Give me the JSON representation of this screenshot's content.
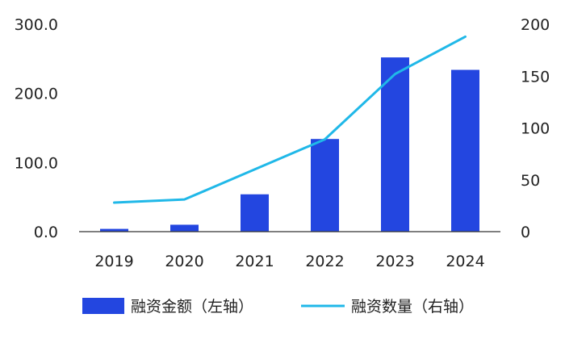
{
  "chart_data": {
    "type": "bar",
    "categories": [
      "2019",
      "2020",
      "2021",
      "2022",
      "2023",
      "2024"
    ],
    "series": [
      {
        "name": "融资金额（左轴）",
        "type": "bar",
        "axis": "left",
        "color": "#2346E0",
        "values": [
          4,
          10,
          54,
          134,
          252,
          234
        ]
      },
      {
        "name": "融资数量（右轴）",
        "type": "line",
        "axis": "right",
        "color": "#20B8E8",
        "values": [
          28,
          31,
          60,
          89,
          152,
          188
        ]
      }
    ],
    "y_left": {
      "ylim": [
        0,
        300
      ],
      "ticks": [
        0,
        100,
        200,
        300
      ],
      "tick_labels": [
        "0.0",
        "100.0",
        "200.0",
        "300.0"
      ]
    },
    "y_right": {
      "ylim": [
        0,
        200
      ],
      "ticks": [
        0,
        50,
        100,
        150,
        200
      ],
      "tick_labels": [
        "0",
        "50",
        "100",
        "150",
        "200"
      ]
    },
    "title": "",
    "xlabel": "",
    "ylabel": "",
    "grid": false,
    "legend_position": "bottom"
  }
}
